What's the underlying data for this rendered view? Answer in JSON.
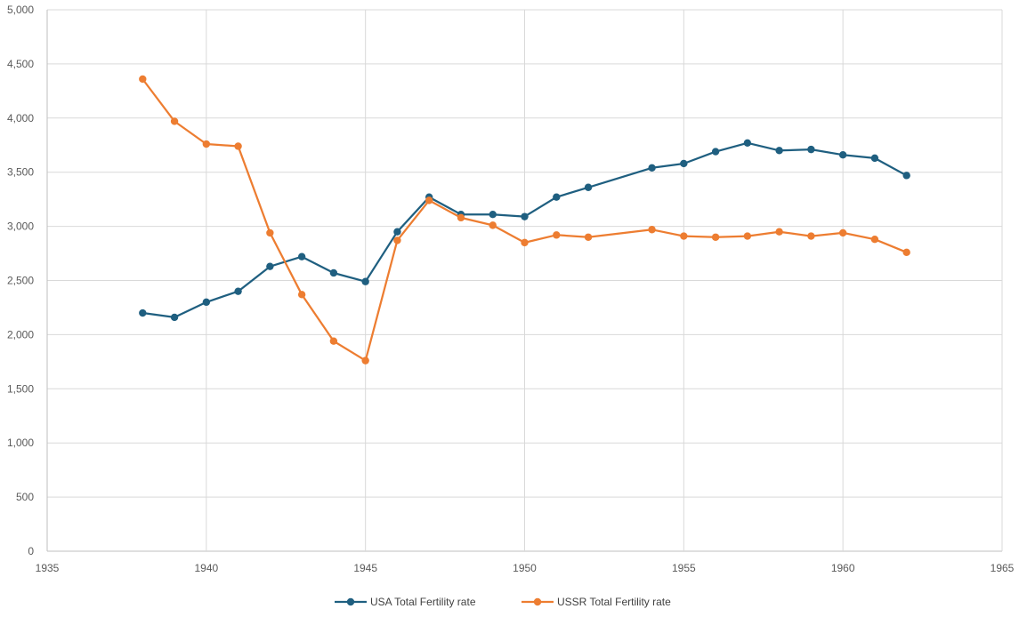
{
  "chart_data": {
    "type": "scatter",
    "xlim": [
      1935,
      1965
    ],
    "ylim": [
      0,
      5000
    ],
    "x_ticks": [
      1935,
      1940,
      1945,
      1950,
      1955,
      1960,
      1965
    ],
    "y_ticks": [
      0,
      500,
      1000,
      1500,
      2000,
      2500,
      3000,
      3500,
      4000,
      4500,
      5000
    ],
    "x_tick_labels": [
      "1935",
      "1940",
      "1945",
      "1950",
      "1955",
      "1960",
      "1965"
    ],
    "y_tick_labels": [
      "0",
      "500",
      "1,000",
      "1,500",
      "2,000",
      "2,500",
      "3,000",
      "3,500",
      "4,000",
      "4,500",
      "5,000"
    ],
    "grid": "both",
    "legend_position": "bottom",
    "series": [
      {
        "name": "USA Total Fertility rate",
        "color": "#1f5f80",
        "points": [
          [
            1938,
            2200
          ],
          [
            1939,
            2160
          ],
          [
            1940,
            2300
          ],
          [
            1941,
            2400
          ],
          [
            1942,
            2630
          ],
          [
            1943,
            2720
          ],
          [
            1944,
            2570
          ],
          [
            1945,
            2490
          ],
          [
            1946,
            2950
          ],
          [
            1947,
            3270
          ],
          [
            1948,
            3110
          ],
          [
            1949,
            3110
          ],
          [
            1950,
            3090
          ],
          [
            1951,
            3270
          ],
          [
            1952,
            3360
          ],
          [
            1954,
            3540
          ],
          [
            1955,
            3580
          ],
          [
            1956,
            3690
          ],
          [
            1957,
            3770
          ],
          [
            1958,
            3700
          ],
          [
            1959,
            3710
          ],
          [
            1960,
            3660
          ],
          [
            1961,
            3630
          ],
          [
            1962,
            3470
          ]
        ]
      },
      {
        "name": "USSR Total Fertility rate",
        "color": "#ed7d31",
        "points": [
          [
            1938,
            4360
          ],
          [
            1939,
            3970
          ],
          [
            1940,
            3760
          ],
          [
            1941,
            3740
          ],
          [
            1942,
            2940
          ],
          [
            1943,
            2370
          ],
          [
            1944,
            1940
          ],
          [
            1945,
            1760
          ],
          [
            1946,
            2870
          ],
          [
            1947,
            3240
          ],
          [
            1948,
            3080
          ],
          [
            1949,
            3010
          ],
          [
            1950,
            2850
          ],
          [
            1951,
            2920
          ],
          [
            1952,
            2900
          ],
          [
            1954,
            2970
          ],
          [
            1955,
            2910
          ],
          [
            1956,
            2900
          ],
          [
            1957,
            2910
          ],
          [
            1958,
            2950
          ],
          [
            1959,
            2910
          ],
          [
            1960,
            2940
          ],
          [
            1961,
            2880
          ],
          [
            1962,
            2760
          ]
        ]
      }
    ]
  }
}
